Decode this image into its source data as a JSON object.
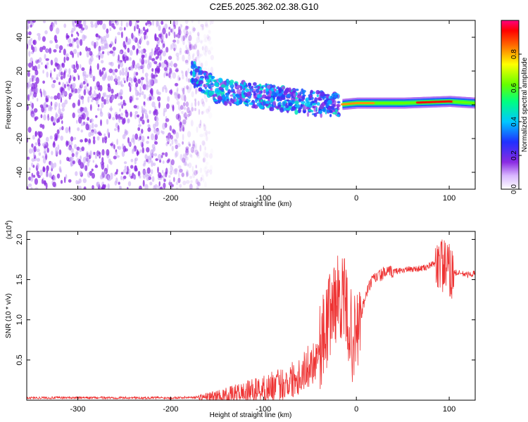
{
  "title": "C2E5.2025.362.02.38.G10",
  "colors": {
    "spectrum_dot": "#7f00ff",
    "snr_line": "#ee3333"
  },
  "chart_data": [
    {
      "type": "heatmap",
      "title": "C2E5.2025.362.02.38.G10",
      "xlabel": "Height of straight line (km)",
      "ylabel": "Frequency (Hz)",
      "xlim": [
        -355,
        128
      ],
      "ylim": [
        -50,
        50
      ],
      "x_ticks": [
        -300,
        -200,
        -100,
        0,
        100
      ],
      "y_ticks": [
        -40,
        -20,
        0,
        20,
        40
      ],
      "colorbar": {
        "label": "Normalized spectral amplitude",
        "range": [
          0.0,
          1.0
        ],
        "ticks": [
          "0.0",
          "0.2",
          "0.4",
          "0.6",
          "0.8"
        ],
        "tick_values": [
          0.0,
          0.2,
          0.4,
          0.6,
          0.8
        ],
        "colormap": "rainbow (white to violet, blue, cyan, green, yellow, red)"
      },
      "features": [
        {
          "name": "noise",
          "x_range": [
            -355,
            -170
          ],
          "freq_range": [
            -50,
            50
          ],
          "amplitude": 0.1
        },
        {
          "name": "signal ridge",
          "points": [
            [
              -175,
              18
            ],
            [
              -150,
              8
            ],
            [
              -100,
              5
            ],
            [
              -50,
              1
            ],
            [
              -20,
              0
            ],
            [
              0,
              1
            ],
            [
              50,
              1
            ],
            [
              100,
              2
            ],
            [
              128,
              1
            ]
          ]
        }
      ]
    },
    {
      "type": "line",
      "xlabel": "Height of straight line (km)",
      "ylabel": "SNR (10 * v/v)",
      "y_scale_label": "(x10",
      "y_scale_exponent": "4",
      "xlim": [
        -355,
        128
      ],
      "ylim": [
        0,
        2.1
      ],
      "x_ticks": [
        -300,
        -200,
        -100,
        0,
        100
      ],
      "y_ticks": [
        "0.5",
        "1.0",
        "1.5",
        "2.0"
      ],
      "y_tick_values": [
        0.5,
        1.0,
        1.5,
        2.0
      ],
      "series": [
        {
          "x": [
            -355,
            -300,
            -250,
            -200,
            -160,
            -140,
            -120,
            -100,
            -80,
            -60,
            -45,
            -35,
            -28,
            -22,
            -17,
            -12,
            -8,
            -4,
            0,
            5,
            10,
            15,
            20,
            25,
            30,
            40,
            50,
            60,
            70,
            75,
            80,
            85,
            90,
            95,
            100,
            110,
            120,
            128
          ],
          "y": [
            0.03,
            0.03,
            0.03,
            0.03,
            0.04,
            0.06,
            0.1,
            0.14,
            0.2,
            0.32,
            0.5,
            0.8,
            1.1,
            1.25,
            1.3,
            1.2,
            0.95,
            0.75,
            0.8,
            1.05,
            1.3,
            1.45,
            1.52,
            1.55,
            1.58,
            1.6,
            1.62,
            1.63,
            1.64,
            1.65,
            1.68,
            1.7,
            1.72,
            1.65,
            1.6,
            1.58,
            1.56,
            1.58
          ]
        }
      ]
    }
  ]
}
